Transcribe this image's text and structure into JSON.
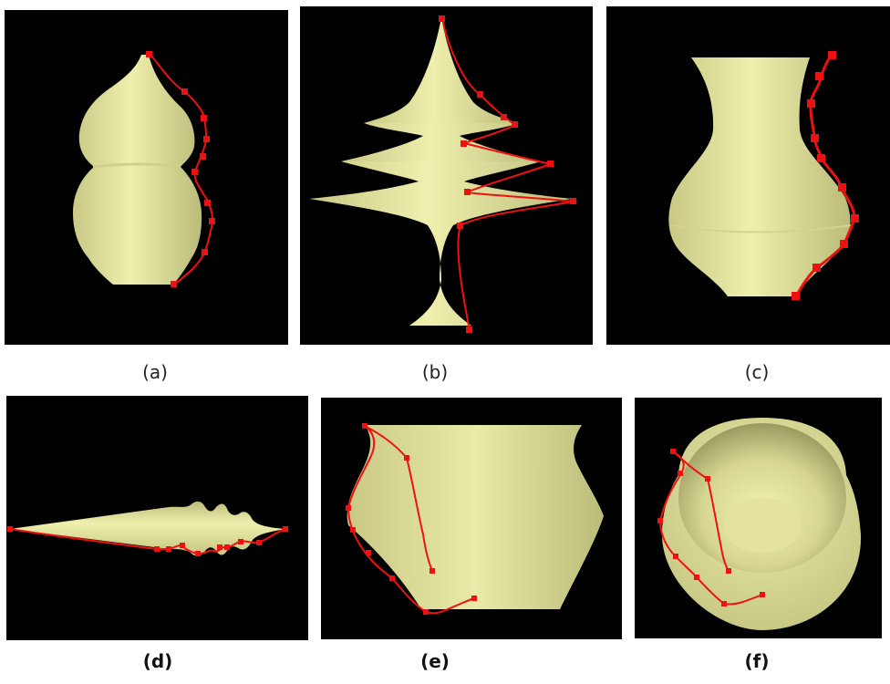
{
  "colors": {
    "background": "#000000",
    "surface_light": "#eeeeaa",
    "surface_mid": "#d8d894",
    "surface_dark": "#b9b97a",
    "curve": "#ee1111"
  },
  "captions": {
    "a": "(a)",
    "b": "(b)",
    "c": "(c)",
    "d": "(d)",
    "e": "(e)",
    "f": "(f)"
  }
}
